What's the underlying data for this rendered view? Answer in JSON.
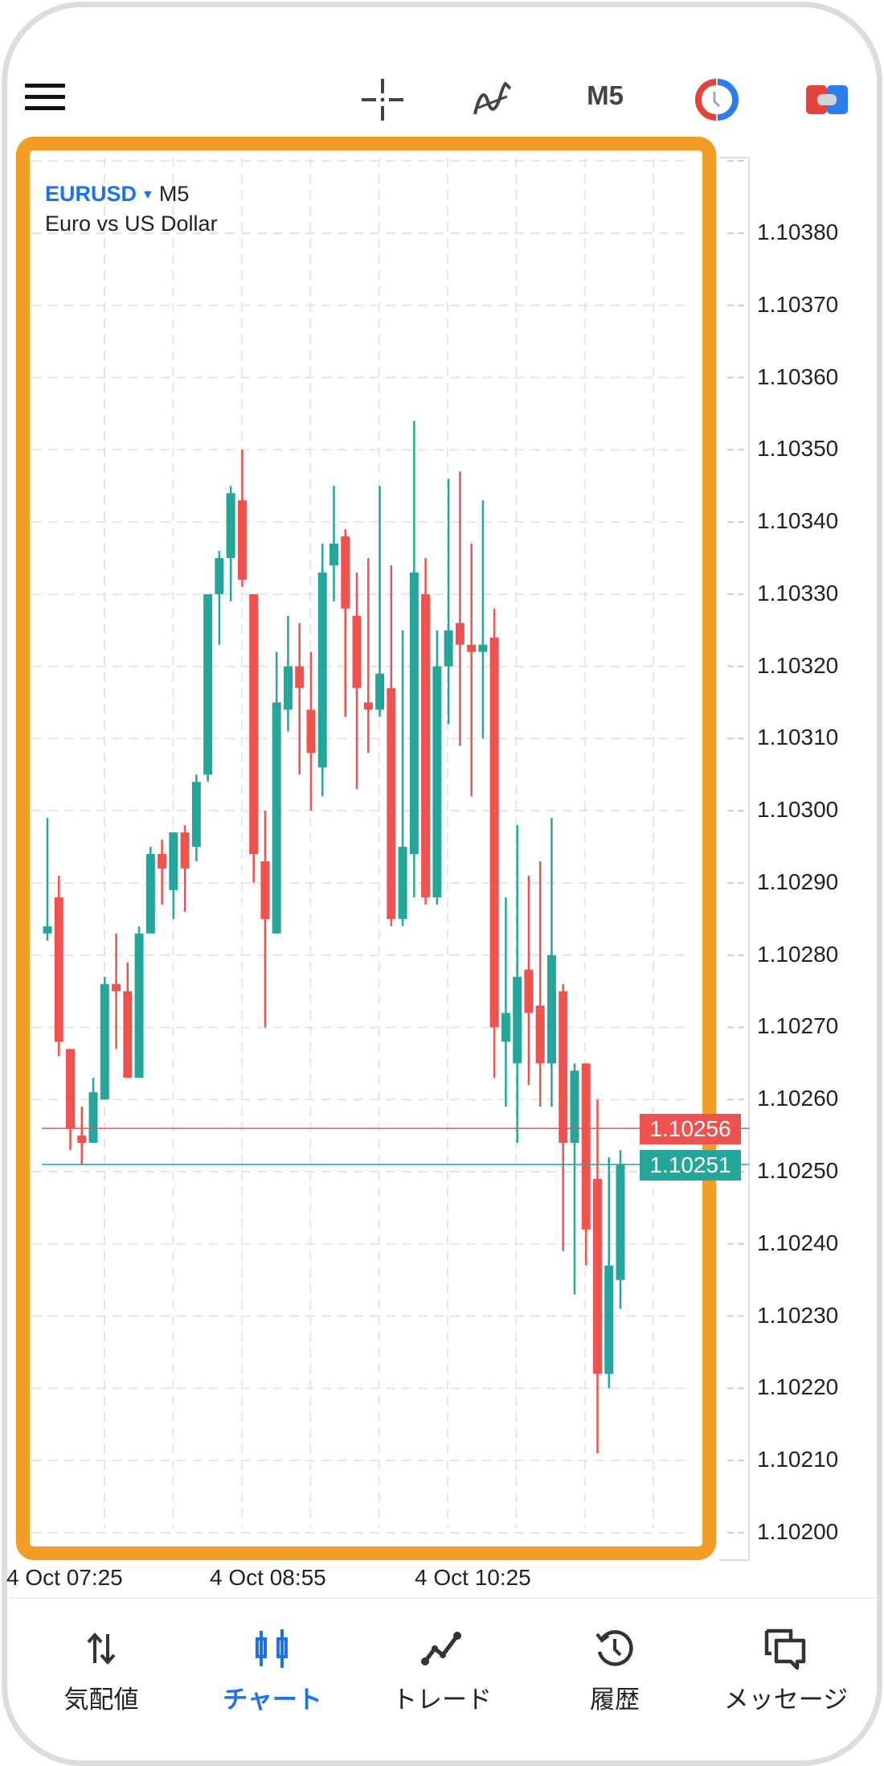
{
  "header": {
    "menu_icon": "hamburger-icon",
    "crosshair_icon": "crosshair-icon",
    "indicators_icon": "indicator-icon",
    "timeframe": "M5",
    "clock_icon": "clock-icon",
    "trade_icon": "one-click-trade-icon"
  },
  "chart": {
    "symbol": "EURUSD",
    "timeframe": "M5",
    "description": "Euro vs US Dollar",
    "highlight_color": "#F39C26"
  },
  "chart_data": {
    "type": "candlestick",
    "symbol": "EURUSD",
    "interval_minutes": 5,
    "ylim": [
      1.10195,
      1.10392
    ],
    "price_ticks": [
      "1.10380",
      "1.10370",
      "1.10360",
      "1.10350",
      "1.10340",
      "1.10330",
      "1.10320",
      "1.10310",
      "1.10300",
      "1.10290",
      "1.10280",
      "1.10270",
      "1.10260",
      "1.10250",
      "1.10240",
      "1.10230",
      "1.10220",
      "1.10210",
      "1.10200"
    ],
    "time_labels": [
      "4 Oct 07:25",
      "4 Oct 08:55",
      "4 Oct 10:25"
    ],
    "ask_price": "1.10256",
    "bid_price": "1.10251",
    "up_color": "#26A69A",
    "down_color": "#EF5350",
    "candles_ohlc": [
      [
        1.10283,
        1.10299,
        1.10282,
        1.10284
      ],
      [
        1.10288,
        1.10291,
        1.10266,
        1.10268
      ],
      [
        1.10267,
        1.10267,
        1.10253,
        1.10256
      ],
      [
        1.10255,
        1.10259,
        1.10251,
        1.10254
      ],
      [
        1.10254,
        1.10263,
        1.10254,
        1.10261
      ],
      [
        1.1026,
        1.10277,
        1.1026,
        1.10276
      ],
      [
        1.10276,
        1.10283,
        1.10267,
        1.10275
      ],
      [
        1.10275,
        1.10279,
        1.10263,
        1.10263
      ],
      [
        1.10263,
        1.10284,
        1.10263,
        1.10283
      ],
      [
        1.10283,
        1.10295,
        1.10283,
        1.10294
      ],
      [
        1.10294,
        1.10296,
        1.10287,
        1.10292
      ],
      [
        1.10289,
        1.10297,
        1.10285,
        1.10297
      ],
      [
        1.10297,
        1.10298,
        1.10286,
        1.10292
      ],
      [
        1.10295,
        1.10305,
        1.10293,
        1.10304
      ],
      [
        1.10305,
        1.1033,
        1.10304,
        1.1033
      ],
      [
        1.1033,
        1.10336,
        1.10323,
        1.10335
      ],
      [
        1.10335,
        1.10345,
        1.10329,
        1.10344
      ],
      [
        1.10343,
        1.1035,
        1.10331,
        1.10332
      ],
      [
        1.1033,
        1.1033,
        1.1029,
        1.10294
      ],
      [
        1.10293,
        1.103,
        1.1027,
        1.10285
      ],
      [
        1.10283,
        1.10322,
        1.10283,
        1.10315
      ],
      [
        1.10314,
        1.10327,
        1.10311,
        1.1032
      ],
      [
        1.1032,
        1.10326,
        1.10305,
        1.10317
      ],
      [
        1.10314,
        1.10322,
        1.103,
        1.10308
      ],
      [
        1.10306,
        1.10337,
        1.10302,
        1.10333
      ],
      [
        1.10334,
        1.10345,
        1.10329,
        1.10337
      ],
      [
        1.10338,
        1.10339,
        1.10313,
        1.10328
      ],
      [
        1.10327,
        1.10333,
        1.10303,
        1.10317
      ],
      [
        1.10315,
        1.10335,
        1.10308,
        1.10314
      ],
      [
        1.10314,
        1.10345,
        1.10313,
        1.10319
      ],
      [
        1.10317,
        1.10334,
        1.10284,
        1.10285
      ],
      [
        1.10285,
        1.10325,
        1.10284,
        1.10295
      ],
      [
        1.10294,
        1.10354,
        1.10288,
        1.10333
      ],
      [
        1.1033,
        1.10335,
        1.10287,
        1.10288
      ],
      [
        1.10288,
        1.10325,
        1.10287,
        1.1032
      ],
      [
        1.1032,
        1.10346,
        1.10312,
        1.10325
      ],
      [
        1.10326,
        1.10347,
        1.10309,
        1.10323
      ],
      [
        1.10323,
        1.10337,
        1.10302,
        1.10322
      ],
      [
        1.10322,
        1.10343,
        1.1031,
        1.10323
      ],
      [
        1.10324,
        1.10328,
        1.10263,
        1.1027
      ],
      [
        1.10268,
        1.10288,
        1.10259,
        1.10272
      ],
      [
        1.10265,
        1.10298,
        1.10254,
        1.10277
      ],
      [
        1.10278,
        1.10291,
        1.10262,
        1.10272
      ],
      [
        1.10273,
        1.10293,
        1.10259,
        1.10265
      ],
      [
        1.10265,
        1.10299,
        1.10259,
        1.1028
      ],
      [
        1.10275,
        1.10276,
        1.10239,
        1.10254
      ],
      [
        1.10254,
        1.10265,
        1.10233,
        1.10264
      ],
      [
        1.10265,
        1.10265,
        1.10237,
        1.10242
      ],
      [
        1.10249,
        1.1026,
        1.10211,
        1.10222
      ],
      [
        1.10222,
        1.10252,
        1.1022,
        1.10237
      ],
      [
        1.10235,
        1.10253,
        1.10231,
        1.10251
      ]
    ]
  },
  "bottom_nav": {
    "items": [
      {
        "label": "気配値",
        "icon": "quotes-arrows-icon"
      },
      {
        "label": "チャート",
        "icon": "chart-candles-icon",
        "active": true
      },
      {
        "label": "トレード",
        "icon": "trade-line-icon"
      },
      {
        "label": "履歴",
        "icon": "history-icon"
      },
      {
        "label": "メッセージ",
        "icon": "messages-icon"
      }
    ],
    "active_color": "#1a73e8"
  }
}
